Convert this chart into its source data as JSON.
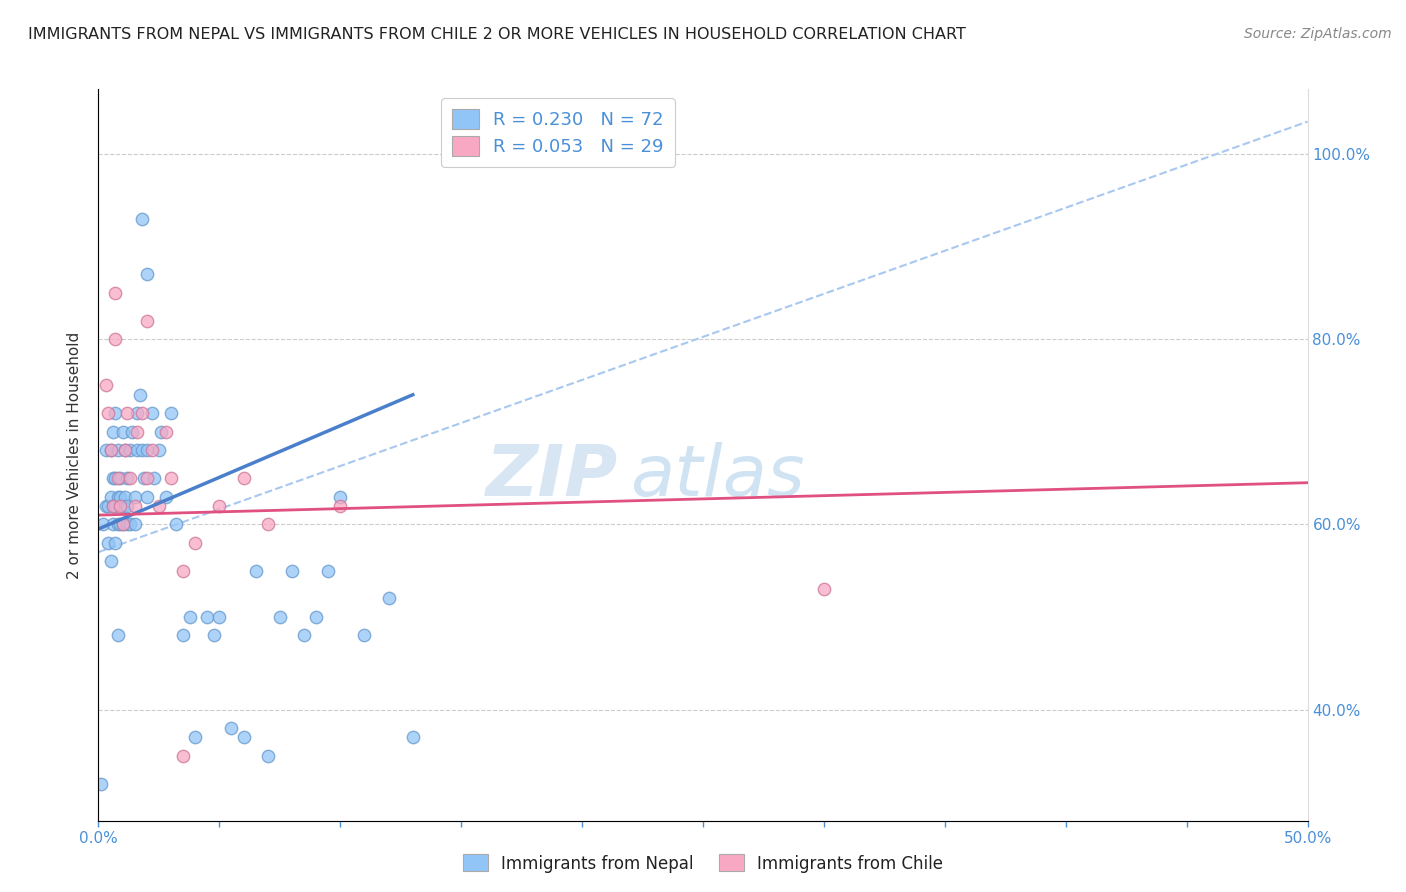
{
  "title": "IMMIGRANTS FROM NEPAL VS IMMIGRANTS FROM CHILE 2 OR MORE VEHICLES IN HOUSEHOLD CORRELATION CHART",
  "source": "Source: ZipAtlas.com",
  "ylabel": "2 or more Vehicles in Household",
  "xlim": [
    0.0,
    0.5
  ],
  "ylim": [
    0.28,
    1.07
  ],
  "xticks": [
    0.0,
    0.05,
    0.1,
    0.15,
    0.2,
    0.25,
    0.3,
    0.35,
    0.4,
    0.45,
    0.5
  ],
  "xticklabels": [
    "0.0%",
    "",
    "",
    "",
    "",
    "",
    "",
    "",
    "",
    "",
    "50.0%"
  ],
  "yticks": [
    0.4,
    0.6,
    0.8,
    1.0
  ],
  "yticklabels": [
    "40.0%",
    "60.0%",
    "80.0%",
    "100.0%"
  ],
  "legend_r1": "R = 0.230",
  "legend_n1": "N = 72",
  "legend_r2": "R = 0.053",
  "legend_n2": "N = 29",
  "legend_label1": "Immigrants from Nepal",
  "legend_label2": "Immigrants from Chile",
  "nepal_color": "#92C5F7",
  "chile_color": "#F9A8C4",
  "nepal_line_color": "#4A7FCC",
  "chile_line_color": "#E05080",
  "watermark_zip": "ZIP",
  "watermark_atlas": "atlas",
  "nepal_scatter_x": [
    0.001,
    0.002,
    0.003,
    0.003,
    0.004,
    0.004,
    0.005,
    0.005,
    0.005,
    0.006,
    0.006,
    0.006,
    0.006,
    0.007,
    0.007,
    0.007,
    0.007,
    0.008,
    0.008,
    0.008,
    0.009,
    0.009,
    0.009,
    0.01,
    0.01,
    0.01,
    0.011,
    0.011,
    0.012,
    0.012,
    0.012,
    0.013,
    0.013,
    0.014,
    0.015,
    0.015,
    0.016,
    0.016,
    0.017,
    0.018,
    0.019,
    0.02,
    0.02,
    0.022,
    0.023,
    0.025,
    0.026,
    0.028,
    0.03,
    0.032,
    0.035,
    0.038,
    0.04,
    0.045,
    0.048,
    0.05,
    0.055,
    0.06,
    0.065,
    0.07,
    0.075,
    0.08,
    0.085,
    0.09,
    0.095,
    0.1,
    0.11,
    0.12,
    0.13,
    0.018,
    0.02,
    0.008
  ],
  "nepal_scatter_y": [
    0.32,
    0.6,
    0.62,
    0.68,
    0.62,
    0.58,
    0.56,
    0.63,
    0.68,
    0.6,
    0.62,
    0.65,
    0.7,
    0.58,
    0.62,
    0.65,
    0.72,
    0.6,
    0.63,
    0.68,
    0.6,
    0.63,
    0.65,
    0.6,
    0.62,
    0.7,
    0.63,
    0.68,
    0.6,
    0.62,
    0.65,
    0.6,
    0.68,
    0.7,
    0.6,
    0.63,
    0.68,
    0.72,
    0.74,
    0.68,
    0.65,
    0.68,
    0.63,
    0.72,
    0.65,
    0.68,
    0.7,
    0.63,
    0.72,
    0.6,
    0.48,
    0.5,
    0.37,
    0.5,
    0.48,
    0.5,
    0.38,
    0.37,
    0.55,
    0.35,
    0.5,
    0.55,
    0.48,
    0.5,
    0.55,
    0.63,
    0.48,
    0.52,
    0.37,
    0.93,
    0.87,
    0.48
  ],
  "chile_scatter_x": [
    0.003,
    0.004,
    0.005,
    0.006,
    0.007,
    0.007,
    0.008,
    0.009,
    0.01,
    0.011,
    0.012,
    0.013,
    0.015,
    0.016,
    0.018,
    0.02,
    0.022,
    0.025,
    0.028,
    0.03,
    0.035,
    0.04,
    0.05,
    0.06,
    0.07,
    0.1,
    0.035,
    0.02,
    0.3
  ],
  "chile_scatter_y": [
    0.75,
    0.72,
    0.68,
    0.62,
    0.85,
    0.8,
    0.65,
    0.62,
    0.6,
    0.68,
    0.72,
    0.65,
    0.62,
    0.7,
    0.72,
    0.65,
    0.68,
    0.62,
    0.7,
    0.65,
    0.55,
    0.58,
    0.62,
    0.65,
    0.6,
    0.62,
    0.35,
    0.82,
    0.53
  ],
  "nepal_trend_x": [
    0.0,
    0.13
  ],
  "nepal_trend_y": [
    0.595,
    0.74
  ],
  "chile_trend_x": [
    0.0,
    0.5
  ],
  "chile_trend_y": [
    0.61,
    0.645
  ],
  "diag_line_x": [
    0.0,
    0.5
  ],
  "diag_line_y": [
    0.57,
    1.035
  ],
  "diag_line_color": "#A8C8F0"
}
